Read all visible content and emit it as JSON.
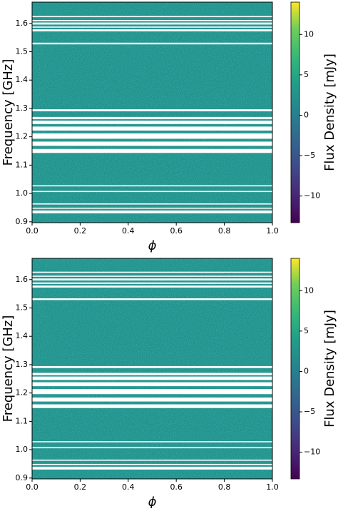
{
  "chart_data": [
    {
      "type": "heatmap",
      "x_label": "ϕ",
      "y_label": "Frequency [GHz]",
      "colorbar_label": "Flux Density [mJy]",
      "xlim": [
        0,
        1
      ],
      "ylim": [
        0.897,
        1.675
      ],
      "xticks": [
        {
          "value": 0,
          "label": "0.0"
        },
        0.2,
        0.4,
        0.6,
        0.8,
        {
          "value": 1,
          "label": "1.0"
        }
      ],
      "yticks": [
        0.9,
        {
          "value": 1,
          "label": "1.0"
        },
        1.1,
        1.2,
        1.3,
        1.4,
        1.5,
        1.6
      ],
      "clim": [
        -13.3,
        14
      ],
      "cticks": [
        {
          "value": -10,
          "label": "−10"
        },
        {
          "value": -5,
          "label": "−5"
        },
        0,
        5,
        10
      ],
      "masked": [
        [
          1.622,
          1.626
        ],
        [
          1.608,
          1.612
        ],
        [
          1.596,
          1.603
        ],
        [
          1.585,
          1.589
        ],
        [
          1.572,
          1.579
        ],
        [
          1.526,
          1.532
        ],
        [
          1.29,
          1.297
        ],
        [
          1.262,
          1.27
        ],
        [
          1.245,
          1.257
        ],
        [
          1.222,
          1.236
        ],
        [
          1.193,
          1.212
        ],
        [
          1.168,
          1.183
        ],
        [
          1.143,
          1.157
        ],
        [
          1.025,
          1.029
        ],
        [
          1.005,
          1.009
        ],
        [
          0.961,
          0.965
        ],
        [
          0.946,
          0.95
        ],
        [
          0.93,
          0.94
        ]
      ]
    },
    {
      "type": "heatmap",
      "x_label": "ϕ",
      "y_label": "Frequency [GHz]",
      "colorbar_label": "Flux Density [mJy]",
      "xlim": [
        0,
        1
      ],
      "ylim": [
        0.897,
        1.675
      ],
      "xticks": [
        {
          "value": 0,
          "label": "0.0"
        },
        0.2,
        0.4,
        0.6,
        0.8,
        {
          "value": 1,
          "label": "1.0"
        }
      ],
      "yticks": [
        0.9,
        {
          "value": 1,
          "label": "1.0"
        },
        1.1,
        1.2,
        1.3,
        1.4,
        1.5,
        1.6
      ],
      "clim": [
        -13.3,
        14
      ],
      "cticks": [
        {
          "value": -10,
          "label": "−10"
        },
        {
          "value": -5,
          "label": "−5"
        },
        0,
        5,
        10
      ],
      "masked": [
        [
          1.624,
          1.628
        ],
        [
          1.61,
          1.614
        ],
        [
          1.597,
          1.604
        ],
        [
          1.585,
          1.59
        ],
        [
          1.572,
          1.579
        ],
        [
          1.528,
          1.534
        ],
        [
          1.288,
          1.295
        ],
        [
          1.263,
          1.271
        ],
        [
          1.246,
          1.258
        ],
        [
          1.224,
          1.238
        ],
        [
          1.196,
          1.214
        ],
        [
          1.17,
          1.184
        ],
        [
          1.147,
          1.16
        ],
        [
          1.026,
          1.03
        ],
        [
          1.005,
          1.009
        ],
        [
          0.961,
          0.965
        ],
        [
          0.946,
          0.95
        ],
        [
          0.93,
          0.94
        ]
      ]
    }
  ]
}
